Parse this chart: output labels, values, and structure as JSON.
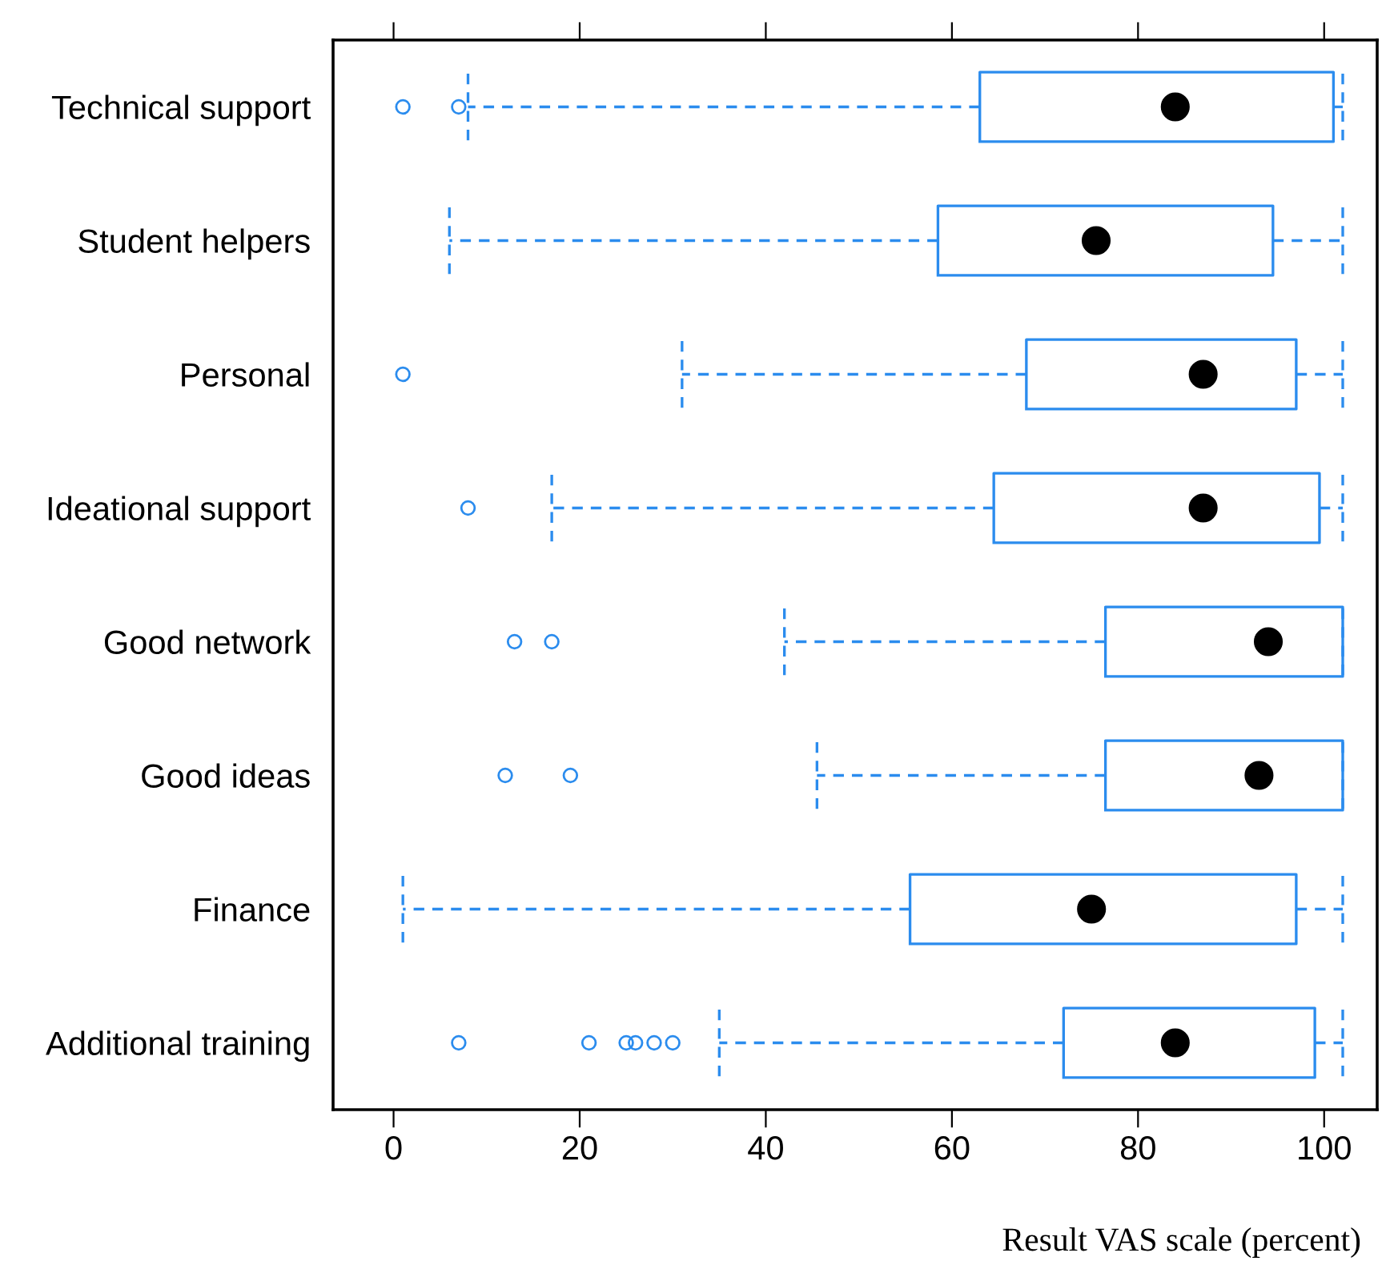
{
  "chart_data": {
    "type": "box",
    "orientation": "horizontal",
    "xlabel": "Result VAS scale (percent)",
    "categories": [
      "Technical support",
      "Student helpers",
      "Personal",
      "Ideational support",
      "Good network",
      "Good ideas",
      "Finance",
      "Additional training"
    ],
    "color": "#2b8cee",
    "boxes": [
      {
        "low": 8,
        "q1": 63,
        "median": 84,
        "q3": 101,
        "high": 102,
        "outliers": [
          1,
          7
        ]
      },
      {
        "low": 6,
        "q1": 58.5,
        "median": 75.5,
        "q3": 94.5,
        "high": 102
      },
      {
        "low": 31,
        "q1": 68,
        "median": 87,
        "q3": 97,
        "high": 102,
        "outliers": [
          1
        ]
      },
      {
        "low": 17,
        "q1": 64.5,
        "median": 87,
        "q3": 99.5,
        "high": 102,
        "outliers": [
          8
        ]
      },
      {
        "low": 42,
        "q1": 76.5,
        "median": 94,
        "q3": 102,
        "high": 102,
        "outliers": [
          13,
          17
        ]
      },
      {
        "low": 45.5,
        "q1": 76.5,
        "median": 93,
        "q3": 102,
        "high": 102,
        "outliers": [
          12,
          19
        ]
      },
      {
        "low": 1,
        "q1": 55.5,
        "median": 75,
        "q3": 97,
        "high": 102
      },
      {
        "low": 35,
        "q1": 72,
        "median": 84,
        "q3": 99,
        "high": 102,
        "outliers": [
          7,
          21,
          25,
          26,
          28,
          30
        ]
      }
    ],
    "xlim": [
      -6.5,
      105.7
    ],
    "xticks": [
      0,
      20,
      40,
      60,
      80,
      100
    ],
    "grid": false,
    "legend": false
  }
}
